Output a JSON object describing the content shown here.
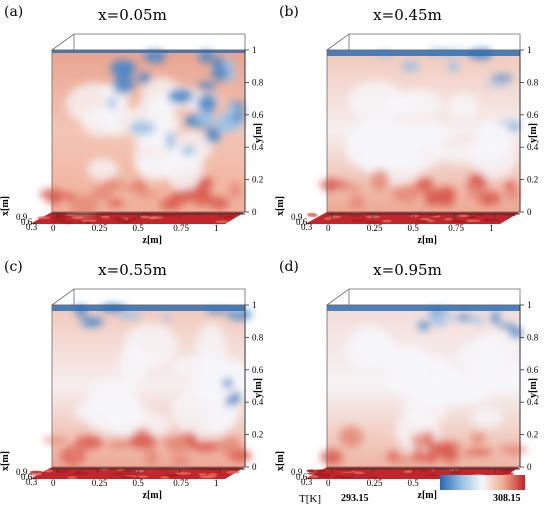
{
  "colors": {
    "cold": "#2e6fb5",
    "neutral": "#f4f4f8",
    "warm": "#e7897a",
    "hot": "#c0262b",
    "frame": "#6a6a6a"
  },
  "panels": [
    {
      "label": "(a)",
      "title": "x=0.05m",
      "profile": "cold-top-right"
    },
    {
      "label": "(b)",
      "title": "x=0.45m",
      "profile": "mixed"
    },
    {
      "label": "(c)",
      "title": "x=0.55m",
      "profile": "mixed"
    },
    {
      "label": "(d)",
      "title": "x=0.95m",
      "profile": "mixed-light"
    }
  ],
  "axes": {
    "y_label": "y[m]",
    "y_ticks": [
      "0",
      "0.2",
      "0.4",
      "0.6",
      "0.8",
      "1"
    ],
    "z_label": "z[m]",
    "z_ticks": [
      "0",
      "0.25",
      "0.5",
      "0.75",
      "1"
    ],
    "x_label": "x[m]",
    "x_ticks": [
      "0.9",
      "0.6",
      "0.3"
    ]
  },
  "colorbar": {
    "label": "T[K]",
    "min": "293.15",
    "max": "308.15"
  }
}
